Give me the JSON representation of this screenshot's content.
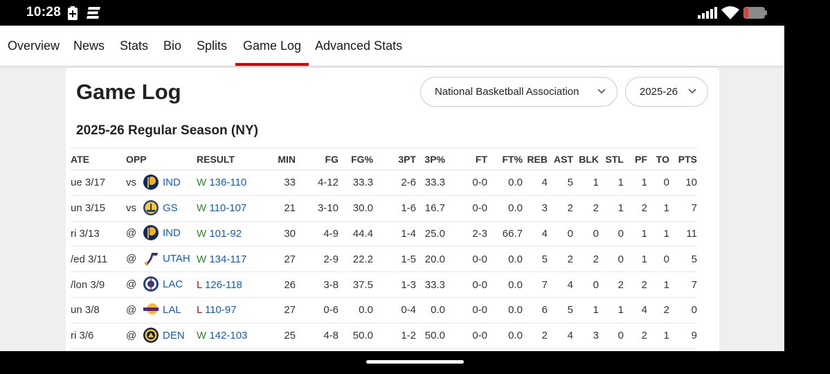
{
  "status": {
    "time": "10:28"
  },
  "nav": {
    "tabs": [
      {
        "label": "Overview",
        "active": false
      },
      {
        "label": "News",
        "active": false
      },
      {
        "label": "Stats",
        "active": false
      },
      {
        "label": "Bio",
        "active": false
      },
      {
        "label": "Splits",
        "active": false
      },
      {
        "label": "Game Log",
        "active": true
      },
      {
        "label": "Advanced Stats",
        "active": false
      }
    ]
  },
  "page": {
    "title": "Game Log",
    "league_select": "National Basketball Association",
    "season_select": "2025-26",
    "section_title": "2025-26 Regular Season (NY)"
  },
  "table": {
    "headers": [
      "ATE",
      "OPP",
      "RESULT",
      "MIN",
      "FG",
      "FG%",
      "3PT",
      "3P%",
      "FT",
      "FT%",
      "REB",
      "AST",
      "BLK",
      "STL",
      "PF",
      "TO",
      "PTS"
    ],
    "rows": [
      {
        "date": "ue 3/17",
        "loc": "vs",
        "team": "IND",
        "logo": "pacers-logo",
        "wl": "W",
        "score": "136-110",
        "min": "33",
        "fg": "4-12",
        "fgp": "33.3",
        "tpt": "2-6",
        "tpp": "33.3",
        "ft": "0-0",
        "ftp": "0.0",
        "reb": "4",
        "ast": "5",
        "blk": "1",
        "stl": "1",
        "pf": "1",
        "to": "0",
        "pts": "10"
      },
      {
        "date": "un 3/15",
        "loc": "vs",
        "team": "GS",
        "logo": "warriors-logo",
        "wl": "W",
        "score": "110-107",
        "min": "21",
        "fg": "3-10",
        "fgp": "30.0",
        "tpt": "1-6",
        "tpp": "16.7",
        "ft": "0-0",
        "ftp": "0.0",
        "reb": "3",
        "ast": "2",
        "blk": "2",
        "stl": "1",
        "pf": "2",
        "to": "1",
        "pts": "7"
      },
      {
        "date": "ri 3/13",
        "loc": "@",
        "team": "IND",
        "logo": "pacers-logo",
        "wl": "W",
        "score": "101-92",
        "min": "30",
        "fg": "4-9",
        "fgp": "44.4",
        "tpt": "1-4",
        "tpp": "25.0",
        "ft": "2-3",
        "ftp": "66.7",
        "reb": "4",
        "ast": "0",
        "blk": "0",
        "stl": "0",
        "pf": "1",
        "to": "1",
        "pts": "11"
      },
      {
        "date": "/ed 3/11",
        "loc": "@",
        "team": "UTAH",
        "logo": "jazz-logo",
        "wl": "W",
        "score": "134-117",
        "min": "27",
        "fg": "2-9",
        "fgp": "22.2",
        "tpt": "1-5",
        "tpp": "20.0",
        "ft": "0-0",
        "ftp": "0.0",
        "reb": "5",
        "ast": "2",
        "blk": "2",
        "stl": "0",
        "pf": "1",
        "to": "0",
        "pts": "5"
      },
      {
        "date": "/lon 3/9",
        "loc": "@",
        "team": "LAC",
        "logo": "clippers-logo",
        "wl": "L",
        "score": "126-118",
        "min": "26",
        "fg": "3-8",
        "fgp": "37.5",
        "tpt": "1-3",
        "tpp": "33.3",
        "ft": "0-0",
        "ftp": "0.0",
        "reb": "7",
        "ast": "4",
        "blk": "0",
        "stl": "2",
        "pf": "2",
        "to": "1",
        "pts": "7"
      },
      {
        "date": "un 3/8",
        "loc": "@",
        "team": "LAL",
        "logo": "lakers-logo",
        "wl": "L",
        "score": "110-97",
        "min": "27",
        "fg": "0-6",
        "fgp": "0.0",
        "tpt": "0-4",
        "tpp": "0.0",
        "ft": "0-0",
        "ftp": "0.0",
        "reb": "6",
        "ast": "5",
        "blk": "1",
        "stl": "1",
        "pf": "4",
        "to": "2",
        "pts": "0"
      },
      {
        "date": "ri 3/6",
        "loc": "@",
        "team": "DEN",
        "logo": "nuggets-logo",
        "wl": "W",
        "score": "142-103",
        "min": "25",
        "fg": "4-8",
        "fgp": "50.0",
        "tpt": "1-2",
        "tpp": "50.0",
        "ft": "0-0",
        "ftp": "0.0",
        "reb": "2",
        "ast": "4",
        "blk": "3",
        "stl": "0",
        "pf": "2",
        "to": "1",
        "pts": "9"
      }
    ]
  },
  "colors": {
    "accent_red": "#dd0000",
    "win_green": "#2a8a2a",
    "link_blue": "#0b5ec0"
  }
}
